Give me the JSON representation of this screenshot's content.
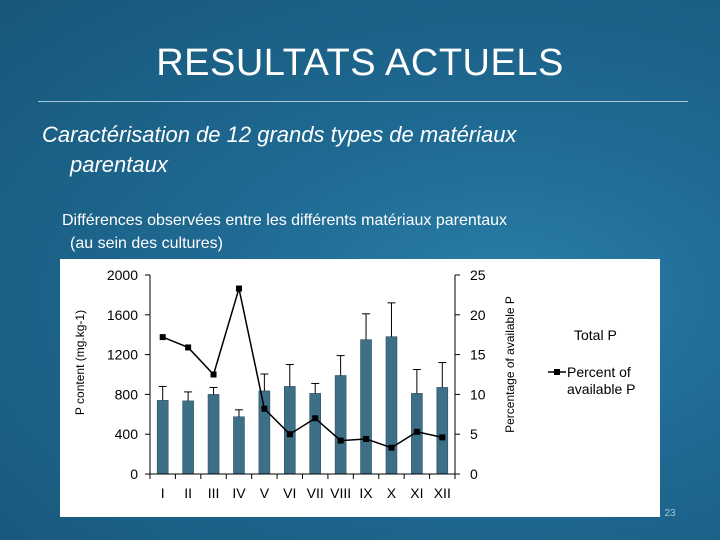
{
  "slide": {
    "title": "RESULTATS ACTUELS",
    "subtitle_line1": "Caractérisation de 12 grands types de matériaux",
    "subtitle_line2": "parentaux",
    "note_line1": "Différences observées entre les différents matériaux parentaux",
    "note_line2": "(au sein des cultures)",
    "page_number": "23"
  },
  "colors": {
    "background": "#1f6a93",
    "bar_fill": "#3d6f86",
    "line": "#000000"
  },
  "chart_data": {
    "type": "bar",
    "categories": [
      "I",
      "II",
      "III",
      "IV",
      "V",
      "VI",
      "VII",
      "VIII",
      "IX",
      "X",
      "XI",
      "XII"
    ],
    "ylabel": "P content (mg.kg-1)",
    "y2label": "Percentage of available P",
    "ylim": [
      0,
      2000
    ],
    "y2lim": [
      0,
      25
    ],
    "yticks": [
      0,
      400,
      800,
      1200,
      1600,
      2000
    ],
    "y2ticks": [
      0,
      5,
      10,
      15,
      20,
      25
    ],
    "series": [
      {
        "name": "Total P",
        "type": "bar",
        "axis": "left",
        "values": [
          740,
          735,
          800,
          575,
          835,
          880,
          810,
          990,
          1350,
          1380,
          810,
          870
        ],
        "error": [
          140,
          90,
          70,
          70,
          170,
          220,
          100,
          200,
          260,
          340,
          240,
          250
        ]
      },
      {
        "name": "Percent of available P",
        "type": "line",
        "axis": "right",
        "values": [
          17.2,
          15.9,
          12.5,
          23.3,
          8.2,
          5.0,
          7.0,
          4.2,
          4.4,
          3.3,
          5.3,
          4.6
        ]
      }
    ],
    "legend": "right"
  }
}
